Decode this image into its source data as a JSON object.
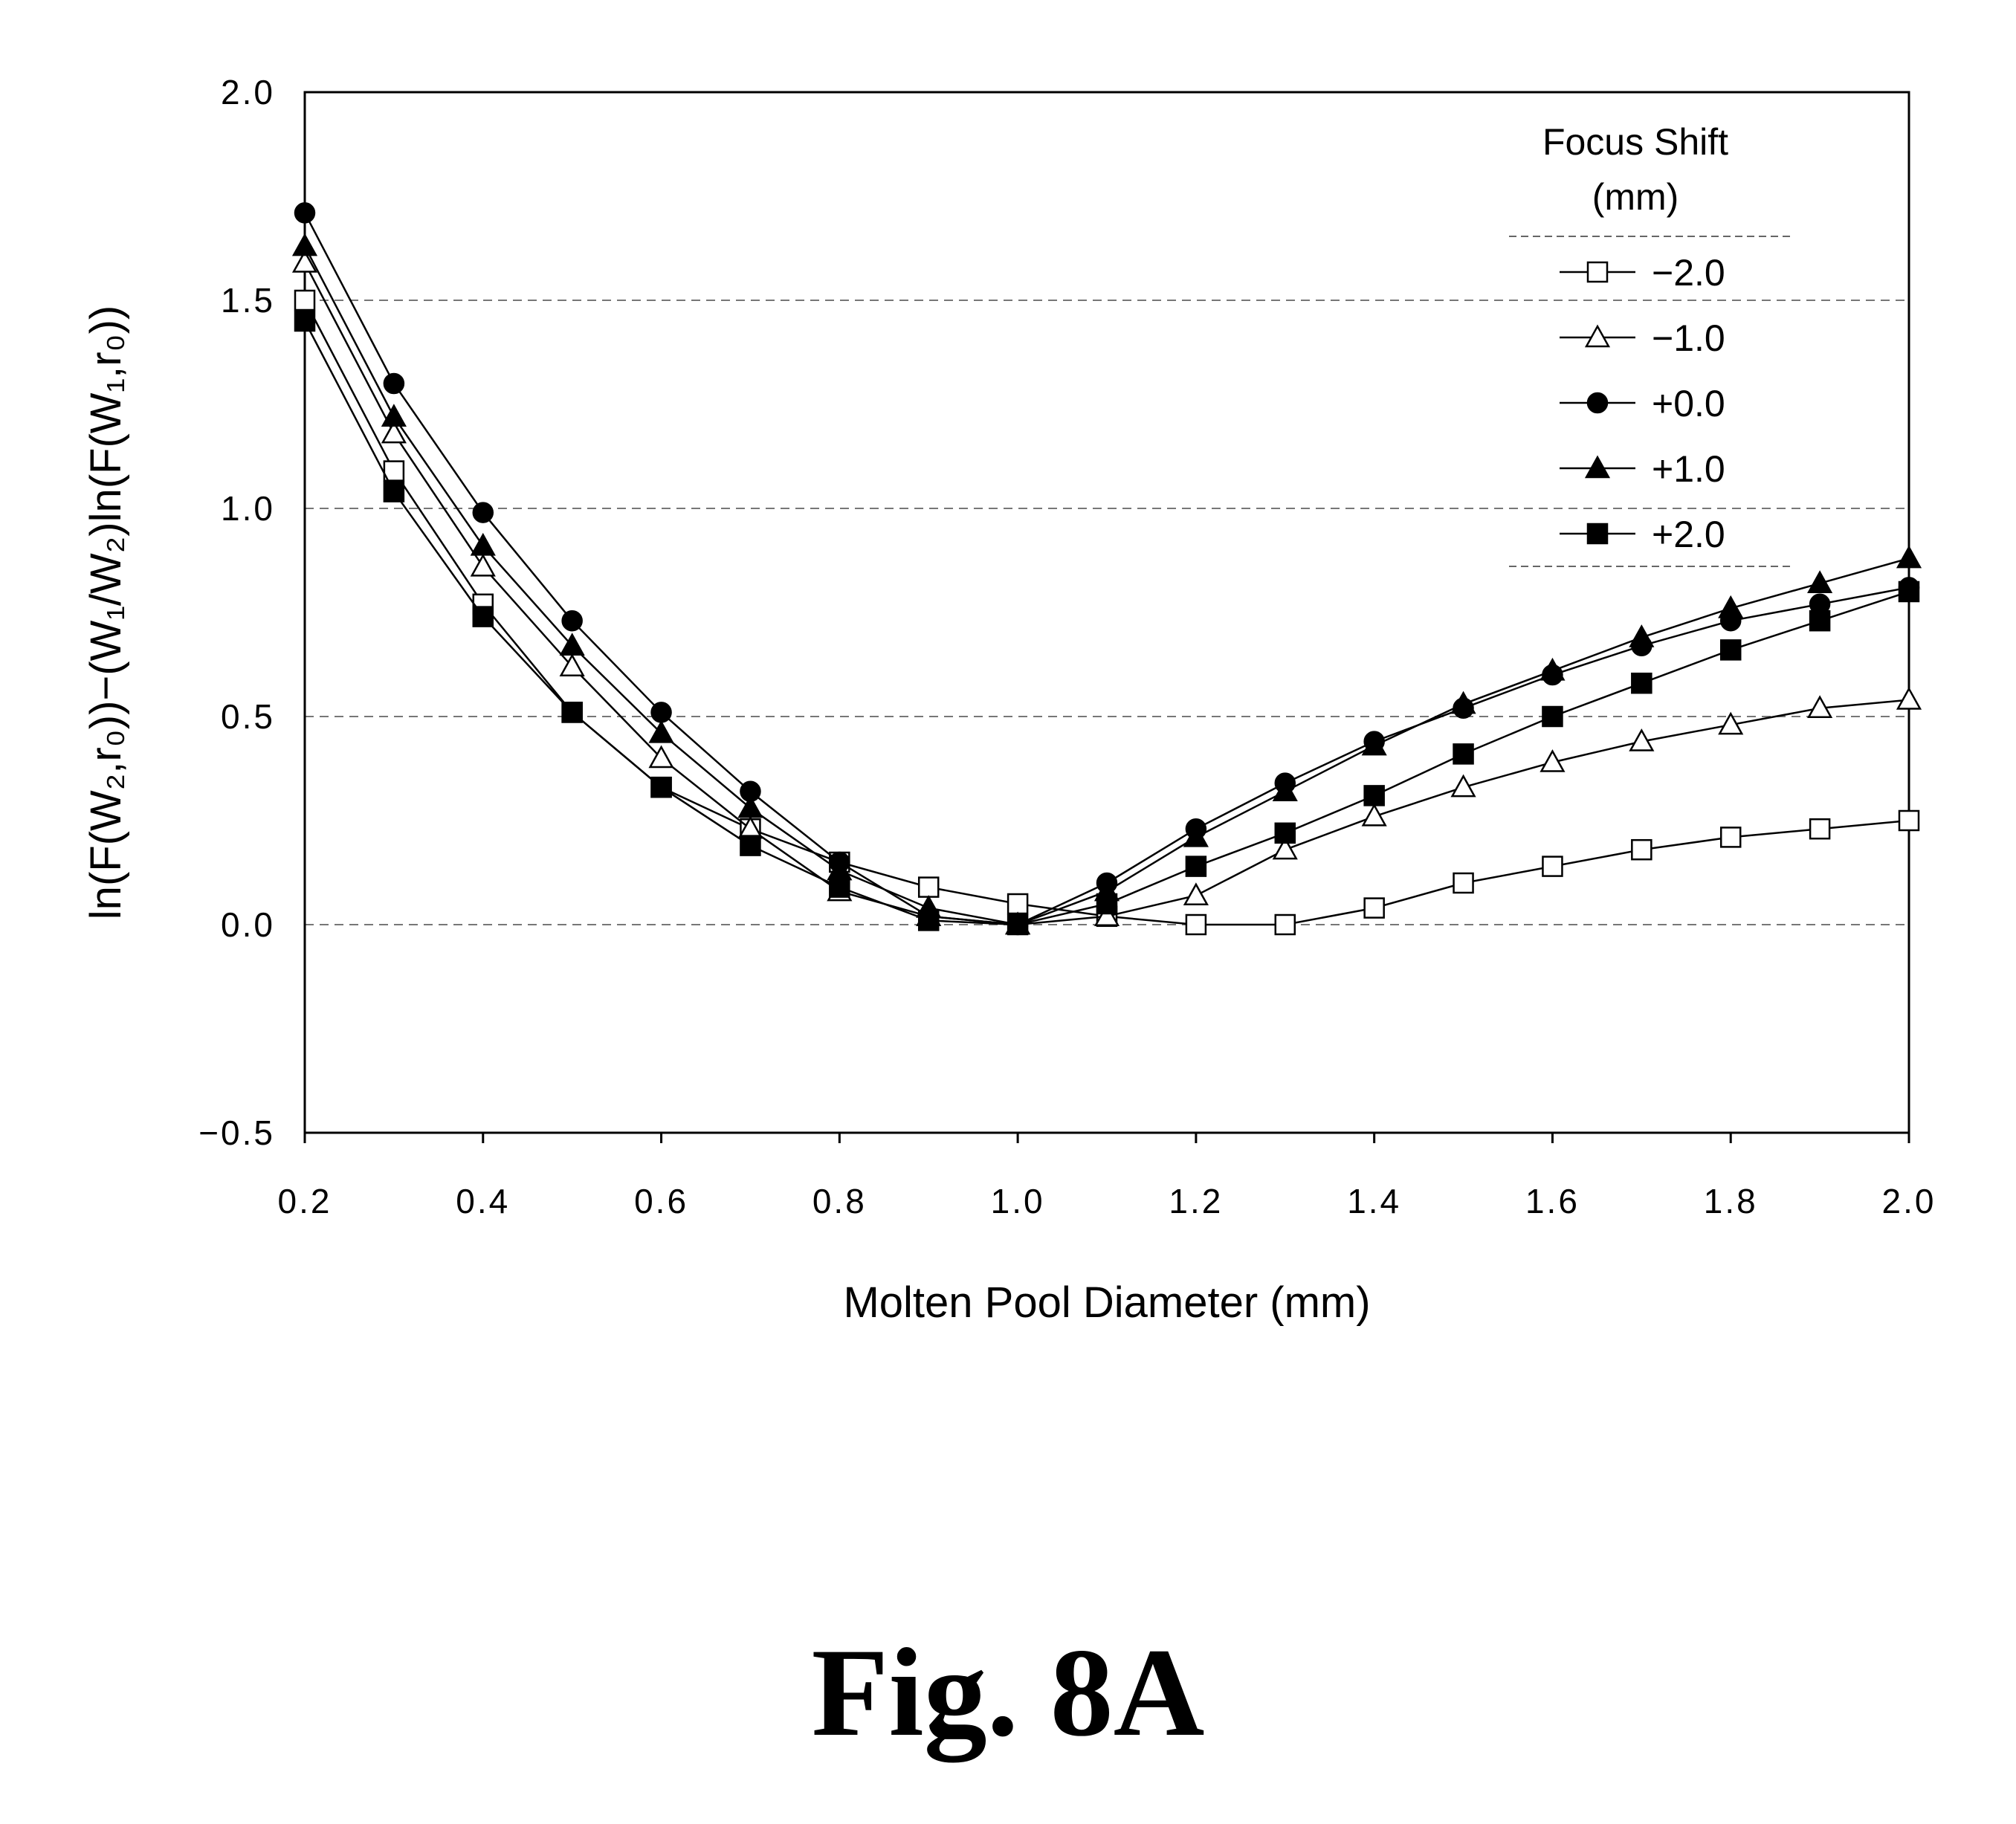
{
  "figure": {
    "caption": "Fig. 8A"
  },
  "chart_data": {
    "type": "line",
    "title": "",
    "xlabel": "Molten Pool Diameter (mm)",
    "ylabel": "ln(F(W₂,r₀))−(W₁/W₂)ln(F(W₁,r₀))",
    "xlim": [
      0.2,
      2.0
    ],
    "ylim": [
      -0.5,
      2.0
    ],
    "x_ticks": [
      "0.2",
      "0.4",
      "0.6",
      "0.8",
      "1.0",
      "1.2",
      "1.4",
      "1.6",
      "1.8",
      "2.0"
    ],
    "y_ticks": [
      "2.0",
      "1.5",
      "1.0",
      "0.5",
      "0.0",
      "−0.5"
    ],
    "grid": "horizontal dashed",
    "legend": {
      "title_line1": "Focus Shift",
      "title_line2": "(mm)",
      "placement": "top-right"
    },
    "x": [
      0.2,
      0.3,
      0.4,
      0.5,
      0.6,
      0.7,
      0.8,
      0.9,
      1.0,
      1.1,
      1.2,
      1.3,
      1.4,
      1.5,
      1.6,
      1.7,
      1.8,
      1.9,
      2.0
    ],
    "series": [
      {
        "name": "−2.0",
        "marker": "square-open",
        "values": [
          1.5,
          1.09,
          0.77,
          0.51,
          0.33,
          0.23,
          0.15,
          0.09,
          0.05,
          0.02,
          0.0,
          0.0,
          0.04,
          0.1,
          0.14,
          0.18,
          0.21,
          0.23,
          0.25
        ]
      },
      {
        "name": "−1.0",
        "marker": "triangle-open",
        "values": [
          1.59,
          1.18,
          0.86,
          0.62,
          0.4,
          0.23,
          0.08,
          0.02,
          0.0,
          0.02,
          0.07,
          0.18,
          0.26,
          0.33,
          0.39,
          0.44,
          0.48,
          0.52,
          0.54
        ]
      },
      {
        "name": "+0.0",
        "marker": "circle-filled",
        "values": [
          1.71,
          1.3,
          0.99,
          0.73,
          0.51,
          0.32,
          0.15,
          0.02,
          0.0,
          0.1,
          0.23,
          0.34,
          0.44,
          0.52,
          0.6,
          0.67,
          0.73,
          0.77,
          0.81
        ]
      },
      {
        "name": "+1.0",
        "marker": "triangle-filled",
        "values": [
          1.63,
          1.22,
          0.91,
          0.67,
          0.46,
          0.28,
          0.13,
          0.04,
          0.0,
          0.08,
          0.21,
          0.32,
          0.43,
          0.53,
          0.61,
          0.69,
          0.76,
          0.82,
          0.88
        ]
      },
      {
        "name": "+2.0",
        "marker": "square-filled",
        "values": [
          1.45,
          1.04,
          0.74,
          0.51,
          0.33,
          0.19,
          0.09,
          0.01,
          0.0,
          0.05,
          0.14,
          0.22,
          0.31,
          0.41,
          0.5,
          0.58,
          0.66,
          0.73,
          0.8
        ]
      }
    ]
  }
}
